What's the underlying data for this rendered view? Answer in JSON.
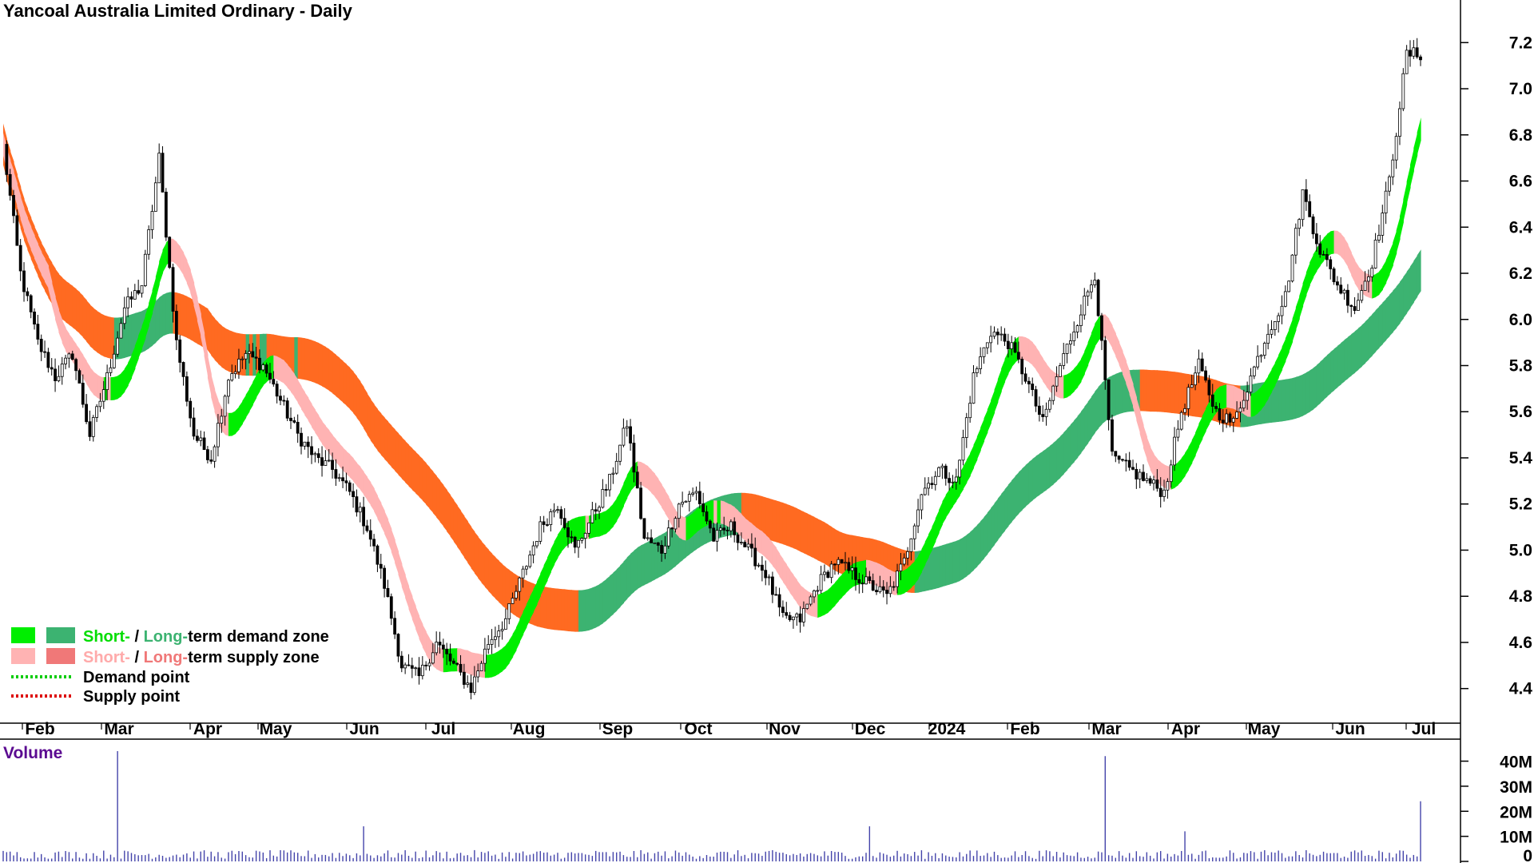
{
  "chart_data": {
    "type": "candlestick",
    "title": "Yancoal Australia Limited Ordinary - Daily",
    "ylim": [
      4.25,
      7.35
    ],
    "y_ticks": [
      "4.4",
      "4.6",
      "4.8",
      "5.0",
      "5.2",
      "5.4",
      "5.6",
      "5.8",
      "6.0",
      "6.2",
      "6.4",
      "6.6",
      "6.8",
      "7.0",
      "7.2"
    ],
    "x_ticks": [
      "Feb",
      "Mar",
      "Apr",
      "May",
      "Jun",
      "Jul",
      "Aug",
      "Sep",
      "Oct",
      "Nov",
      "Dec",
      "2024",
      "Feb",
      "Mar",
      "Apr",
      "May",
      "Jun",
      "Jul"
    ],
    "price_weekly": [
      6.75,
      6.2,
      5.9,
      5.75,
      5.85,
      5.5,
      5.75,
      6.05,
      6.15,
      6.7,
      5.9,
      5.5,
      5.4,
      5.75,
      5.85,
      5.8,
      5.65,
      5.5,
      5.4,
      5.35,
      5.25,
      5.1,
      4.85,
      4.5,
      4.45,
      4.6,
      4.5,
      4.4,
      4.6,
      4.7,
      4.9,
      5.1,
      5.2,
      5.0,
      5.15,
      5.3,
      5.55,
      5.05,
      5.0,
      5.2,
      5.25,
      5.05,
      5.1,
      5.0,
      4.9,
      4.7,
      4.7,
      4.85,
      4.95,
      4.9,
      4.85,
      4.8,
      4.95,
      5.25,
      5.35,
      5.3,
      5.75,
      5.95,
      5.9,
      5.75,
      5.55,
      5.8,
      6.0,
      6.2,
      5.4,
      5.35,
      5.3,
      5.25,
      5.6,
      5.8,
      5.6,
      5.55,
      5.75,
      5.95,
      6.1,
      6.55,
      6.3,
      6.15,
      6.05,
      6.25,
      6.6,
      7.15
    ],
    "volume_axis": {
      "label": "Volume",
      "ticks": [
        "40M",
        "30M",
        "20M",
        "10M",
        "0"
      ],
      "max": 44
    },
    "volume_spikes": [
      {
        "month": "Mar",
        "value": 44
      },
      {
        "month": "Jun",
        "value": 14
      },
      {
        "month": "Dec",
        "value": 14
      },
      {
        "month": "Mar 2024",
        "value": 42
      },
      {
        "month": "Apr 2024",
        "value": 12
      },
      {
        "month": "Jul 2024",
        "value": 24
      }
    ],
    "zones": [
      "short-term demand",
      "long-term demand",
      "short-term supply",
      "long-term supply"
    ],
    "legend": [
      {
        "short": "Short-",
        "sep": " / ",
        "long": "Long-",
        "rest": "term demand zone"
      },
      {
        "short": "Short-",
        "sep": " / ",
        "long": "Long-",
        "rest": "term supply zone"
      },
      {
        "label": "Demand point"
      },
      {
        "label": "Supply point"
      }
    ],
    "colors": {
      "short_demand": "#00ee00",
      "long_demand": "#3cb371",
      "short_supply": "#ffb3b3",
      "long_supply": "#f07878",
      "transition": "#ff6a21",
      "demand_point": "#00cc00",
      "supply_point": "#dd0000",
      "volume": "#4444aa",
      "volume_title": "#5b0a91"
    }
  }
}
